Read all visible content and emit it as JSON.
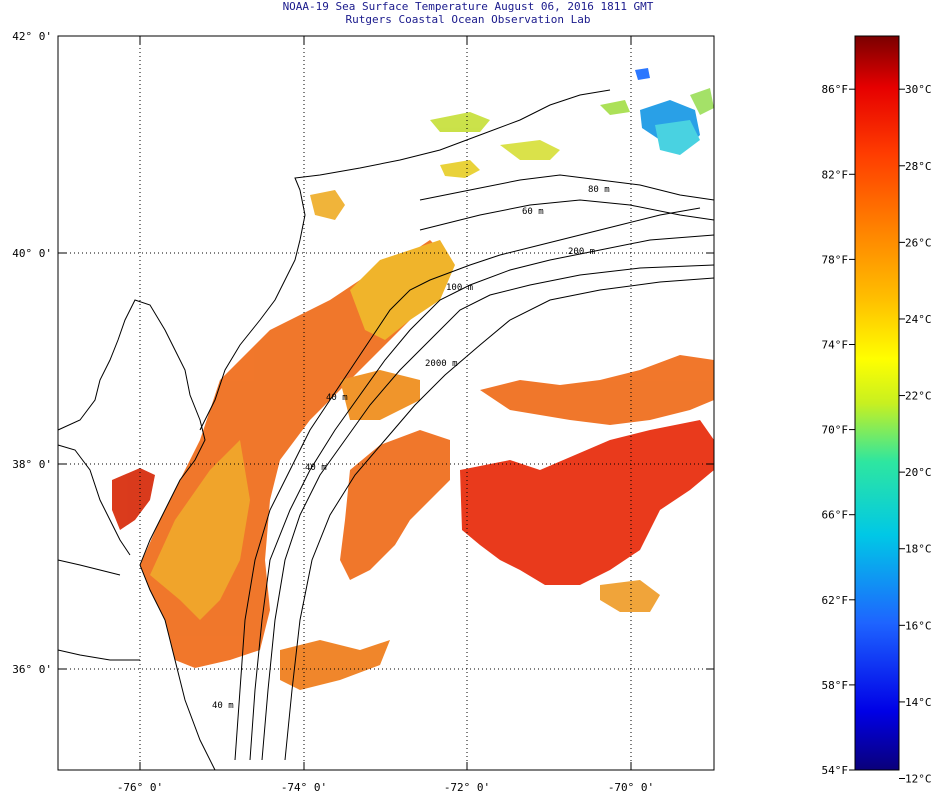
{
  "map": {
    "title": "NOAA-19 Sea Surface Temperature August 06, 2016 1811 GMT",
    "subtitle": "Rutgers Coastal Ocean Observation Lab",
    "lat_labels": [
      {
        "value": 42,
        "label": "42° 0'"
      },
      {
        "value": 40,
        "label": "40° 0'"
      },
      {
        "value": 38,
        "label": "38° 0'"
      },
      {
        "value": 36,
        "label": "36° 0'"
      }
    ],
    "lon_labels": [
      {
        "value": -76,
        "label": "-76° 0'"
      },
      {
        "value": -74,
        "label": "-74° 0'"
      },
      {
        "value": -72,
        "label": "-72° 0'"
      },
      {
        "value": -70,
        "label": "-70° 0'"
      }
    ],
    "lon_range": [
      -77,
      -69
    ],
    "lat_range": [
      35,
      42.2
    ],
    "contour_labels": [
      "80 m",
      "60 m",
      "200 m",
      "100 m",
      "2000 m",
      "40 m",
      "40 m",
      "40 m"
    ],
    "palette": [
      "#0a007a",
      "#0000e6",
      "#1e64ff",
      "#00c8e6",
      "#2ee6a0",
      "#c8f020",
      "#ffff00",
      "#ffc000",
      "#ff8000",
      "#ff3c00",
      "#e60000",
      "#7a0000"
    ]
  },
  "colorbar": {
    "fahrenheit": [
      "86°F",
      "82°F",
      "78°F",
      "74°F",
      "70°F",
      "66°F",
      "62°F",
      "58°F",
      "54°F"
    ],
    "celsius": [
      "30°C",
      "28°C",
      "26°C",
      "24°C",
      "22°C",
      "20°C",
      "18°C",
      "16°C",
      "14°C",
      "12°C"
    ],
    "f_range": [
      54,
      88.5
    ]
  }
}
